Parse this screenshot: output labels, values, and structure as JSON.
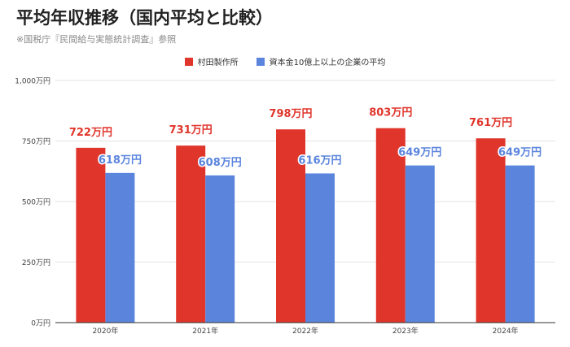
{
  "title": "平均年収推移（国内平均と比較）",
  "subtitle": "※国税庁『民間給与実態統計調査』参照",
  "colors": {
    "series_0": "#e0352b",
    "series_1": "#5b85dd",
    "grid": "#e3e3e3",
    "axis": "#333333"
  },
  "chart_data": {
    "type": "bar",
    "categories": [
      "2020年",
      "2021年",
      "2022年",
      "2023年",
      "2024年"
    ],
    "series": [
      {
        "name": "村田製作所",
        "values": [
          722,
          731,
          798,
          803,
          761
        ],
        "labels": [
          "722万円",
          "731万円",
          "798万円",
          "803万円",
          "761万円"
        ]
      },
      {
        "name": "資本金10億上以上の企業の平均",
        "values": [
          618,
          608,
          616,
          649,
          649
        ],
        "labels": [
          "618万円",
          "608万円",
          "616万円",
          "649万円",
          "649万円"
        ]
      }
    ],
    "ylim": [
      0,
      1000
    ],
    "yticks": [
      0,
      250,
      500,
      750,
      1000
    ],
    "ytick_labels": [
      "0万円",
      "250万円",
      "500万円",
      "750万円",
      "1,000万円"
    ],
    "grid": true,
    "legend_position": "top-center"
  }
}
